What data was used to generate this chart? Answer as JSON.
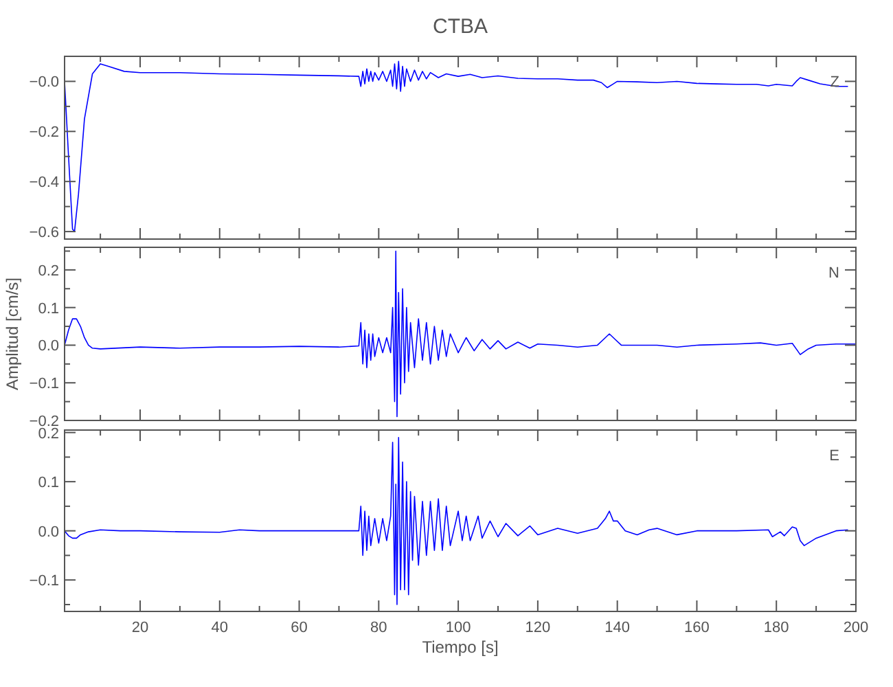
{
  "chart_data": [
    {
      "type": "line",
      "title": "CTBA",
      "annotations": [
        "Z"
      ],
      "tick_labels": "y",
      "xlim": [
        1,
        200
      ],
      "ylim": [
        -0.63,
        0.1
      ],
      "xticks": [
        {
          "value": 10,
          "label": null
        },
        20,
        {
          "value": 30,
          "label": null
        },
        40,
        {
          "value": 50,
          "label": null
        },
        60,
        {
          "value": 70,
          "label": null
        },
        80,
        {
          "value": 90,
          "label": null
        },
        100,
        {
          "value": 110,
          "label": null
        },
        120,
        {
          "value": 130,
          "label": null
        },
        140,
        {
          "value": 150,
          "label": null
        },
        160,
        {
          "value": 170,
          "label": null
        },
        180,
        {
          "value": 190,
          "label": null
        },
        200
      ],
      "yticks": [
        {
          "value": -0.6,
          "label": "−0.6"
        },
        {
          "value": -0.5,
          "label": null
        },
        {
          "value": -0.4,
          "label": "−0.4"
        },
        {
          "value": -0.3,
          "label": null
        },
        {
          "value": -0.2,
          "label": "−0.2"
        },
        {
          "value": -0.1,
          "label": null
        },
        {
          "value": 0,
          "label": "−0.0"
        }
      ],
      "series": [
        {
          "color": "#0000ff",
          "x": [
            1,
            2,
            3,
            3.5,
            4.5,
            6,
            8,
            10,
            12,
            16,
            20,
            30,
            40,
            50,
            60,
            70,
            75,
            75.5,
            76,
            76.5,
            77,
            77.5,
            78,
            78.5,
            79,
            80,
            81,
            82,
            83,
            83.5,
            84,
            84.5,
            85,
            85.5,
            86,
            86.5,
            87,
            88,
            89,
            90,
            91,
            92,
            93,
            95,
            97,
            100,
            103,
            106,
            110,
            115,
            120,
            125,
            130,
            134,
            136,
            137.5,
            139,
            140,
            145,
            150,
            155,
            160,
            165,
            170,
            175,
            178,
            180,
            184,
            185,
            186,
            188,
            191,
            195,
            198
          ],
          "values": [
            0.0,
            -0.3,
            -0.59,
            -0.6,
            -0.45,
            -0.15,
            0.03,
            0.07,
            0.06,
            0.04,
            0.035,
            0.035,
            0.03,
            0.028,
            0.025,
            0.022,
            0.02,
            -0.02,
            0.04,
            -0.01,
            0.05,
            0.0,
            0.04,
            0.0,
            0.035,
            0.005,
            0.04,
            0.0,
            0.045,
            -0.02,
            0.07,
            -0.03,
            0.08,
            -0.04,
            0.06,
            -0.02,
            0.05,
            0.0,
            0.045,
            0.005,
            0.04,
            0.01,
            0.035,
            0.015,
            0.03,
            0.02,
            0.028,
            0.015,
            0.022,
            0.012,
            0.01,
            0.01,
            0.005,
            0.005,
            -0.005,
            -0.025,
            -0.01,
            0.0,
            -0.002,
            -0.005,
            0.0,
            -0.008,
            -0.01,
            -0.012,
            -0.012,
            -0.018,
            -0.012,
            -0.018,
            0.0,
            0.015,
            0.005,
            -0.01,
            -0.02,
            -0.02
          ]
        }
      ]
    },
    {
      "type": "line",
      "ylabel": "Amplitud [cm/s]",
      "annotations": [
        "N"
      ],
      "tick_labels": "y",
      "xlim": [
        1,
        200
      ],
      "ylim": [
        -0.2,
        0.26
      ],
      "xticks": [
        {
          "value": 10,
          "label": null
        },
        20,
        {
          "value": 30,
          "label": null
        },
        40,
        {
          "value": 50,
          "label": null
        },
        60,
        {
          "value": 70,
          "label": null
        },
        80,
        {
          "value": 90,
          "label": null
        },
        100,
        {
          "value": 110,
          "label": null
        },
        120,
        {
          "value": 130,
          "label": null
        },
        140,
        {
          "value": 150,
          "label": null
        },
        160,
        {
          "value": 170,
          "label": null
        },
        180,
        {
          "value": 190,
          "label": null
        },
        200
      ],
      "yticks": [
        {
          "value": -0.2,
          "label": "−0.2"
        },
        {
          "value": -0.15,
          "label": null
        },
        {
          "value": -0.1,
          "label": "−0.1"
        },
        {
          "value": -0.05,
          "label": null
        },
        {
          "value": 0,
          "label": "0.0"
        },
        {
          "value": 0.05,
          "label": null
        },
        {
          "value": 0.1,
          "label": "0.1"
        },
        {
          "value": 0.15,
          "label": null
        },
        {
          "value": 0.2,
          "label": "0.2"
        },
        {
          "value": 0.25,
          "label": null
        }
      ],
      "series": [
        {
          "color": "#0000ff",
          "x": [
            1,
            2,
            3,
            4,
            5,
            6,
            7,
            8,
            10,
            20,
            30,
            40,
            50,
            60,
            70,
            75,
            75.5,
            76,
            76.5,
            77,
            77.5,
            78,
            78.5,
            79,
            80,
            81,
            82,
            83,
            83.5,
            84,
            84.3,
            84.6,
            85,
            85.5,
            86,
            86.5,
            87,
            87.5,
            88,
            89,
            90,
            91,
            92,
            93,
            94,
            95,
            96,
            97,
            98,
            100,
            102,
            104,
            106,
            108,
            110,
            112,
            115,
            118,
            120,
            125,
            130,
            135,
            137,
            138,
            139.5,
            141,
            145,
            150,
            155,
            160,
            170,
            176,
            180,
            184,
            185,
            186,
            188,
            190,
            195,
            200
          ],
          "values": [
            0.0,
            0.04,
            0.07,
            0.07,
            0.05,
            0.02,
            0.0,
            -0.008,
            -0.01,
            -0.005,
            -0.008,
            -0.005,
            -0.005,
            -0.003,
            -0.005,
            -0.002,
            0.06,
            -0.05,
            0.04,
            -0.06,
            0.03,
            -0.04,
            0.03,
            -0.03,
            0.02,
            -0.02,
            0.02,
            -0.02,
            0.1,
            -0.15,
            0.25,
            -0.19,
            0.14,
            -0.13,
            0.15,
            -0.1,
            0.1,
            -0.07,
            0.06,
            -0.06,
            0.07,
            -0.04,
            0.06,
            -0.05,
            0.05,
            -0.04,
            0.04,
            -0.03,
            0.03,
            -0.02,
            0.02,
            -0.015,
            0.015,
            -0.01,
            0.012,
            -0.01,
            0.008,
            -0.008,
            0.003,
            0.0,
            -0.005,
            0.0,
            0.02,
            0.03,
            0.015,
            0.0,
            0.0,
            0.0,
            -0.005,
            0.0,
            0.003,
            0.006,
            0.0,
            0.005,
            -0.01,
            -0.025,
            -0.01,
            0.0,
            0.003,
            0.003
          ]
        }
      ]
    },
    {
      "type": "line",
      "xlabel": "Tiempo [s]",
      "annotations": [
        "E"
      ],
      "xlim": [
        1,
        200
      ],
      "ylim": [
        -0.164,
        0.205
      ],
      "xticks": [
        {
          "value": 10,
          "label": null
        },
        20,
        {
          "value": 30,
          "label": null
        },
        40,
        {
          "value": 50,
          "label": null
        },
        60,
        {
          "value": 70,
          "label": null
        },
        80,
        {
          "value": 90,
          "label": null
        },
        100,
        {
          "value": 110,
          "label": null
        },
        120,
        {
          "value": 130,
          "label": null
        },
        140,
        {
          "value": 150,
          "label": null
        },
        160,
        {
          "value": 170,
          "label": null
        },
        180,
        {
          "value": 190,
          "label": null
        },
        200
      ],
      "yticks": [
        {
          "value": -0.15,
          "label": null
        },
        {
          "value": -0.1,
          "label": "−0.1"
        },
        {
          "value": -0.05,
          "label": null
        },
        {
          "value": 0,
          "label": "0.0"
        },
        {
          "value": 0.05,
          "label": null
        },
        {
          "value": 0.1,
          "label": "0.1"
        },
        {
          "value": 0.15,
          "label": null
        },
        {
          "value": 0.2,
          "label": "0.2"
        }
      ],
      "series": [
        {
          "color": "#0000ff",
          "x": [
            1,
            2,
            3,
            4,
            5,
            7,
            10,
            15,
            20,
            30,
            40,
            45,
            50,
            60,
            70,
            75,
            75.5,
            76,
            76.5,
            77,
            77.5,
            78,
            79,
            80,
            81,
            82,
            83,
            83.5,
            84,
            84.3,
            84.6,
            85,
            85.5,
            86,
            86.5,
            87,
            87.5,
            88,
            88.5,
            89,
            90,
            91,
            92,
            93,
            94,
            95,
            96,
            97,
            98,
            100,
            101,
            102,
            103,
            105,
            106,
            108,
            110,
            112,
            115,
            118,
            120,
            125,
            130,
            135,
            137,
            138,
            139,
            140,
            142,
            145,
            148,
            150,
            155,
            160,
            170,
            178,
            179,
            181,
            182,
            184,
            185,
            186,
            187,
            190,
            195,
            198
          ],
          "values": [
            0.0,
            -0.01,
            -0.015,
            -0.015,
            -0.008,
            -0.002,
            0.002,
            0.0,
            0.0,
            -0.002,
            -0.003,
            0.002,
            0.0,
            0.0,
            0.0,
            0.0,
            0.05,
            -0.05,
            0.04,
            -0.04,
            0.03,
            -0.03,
            0.025,
            -0.025,
            0.025,
            -0.02,
            0.03,
            0.18,
            -0.13,
            0.095,
            -0.15,
            0.19,
            -0.12,
            0.14,
            -0.12,
            0.1,
            -0.13,
            0.08,
            -0.06,
            0.07,
            -0.07,
            0.06,
            -0.05,
            0.06,
            -0.04,
            0.065,
            -0.04,
            0.05,
            -0.03,
            0.04,
            -0.02,
            0.03,
            -0.02,
            0.03,
            -0.015,
            0.02,
            -0.012,
            0.015,
            -0.01,
            0.01,
            -0.008,
            0.005,
            -0.005,
            0.005,
            0.025,
            0.04,
            0.02,
            0.02,
            0.0,
            -0.008,
            0.002,
            0.005,
            -0.008,
            0.0,
            0.0,
            0.002,
            -0.012,
            -0.002,
            -0.01,
            0.008,
            0.005,
            -0.02,
            -0.03,
            -0.015,
            0.0,
            0.002
          ]
        }
      ]
    }
  ]
}
